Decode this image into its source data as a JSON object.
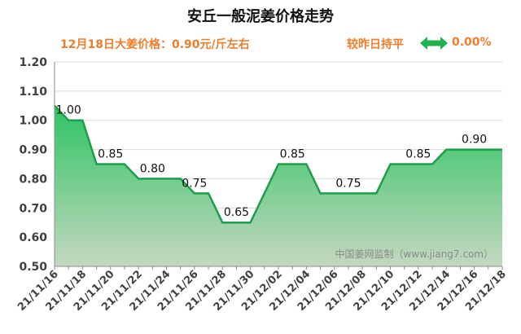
{
  "page_title": "安丘一般泥姜价格走势",
  "price_note": "12月18日大姜价格：0.90元/斤左右",
  "trend_label": "较昨日持平",
  "trend_change": "0.00%",
  "trend_icon": "double-arrow-icon",
  "watermark": "中国姜网监制（www.jiang7.com）",
  "colors": {
    "accent": "#ef7d2a",
    "line": "#1e9e4a",
    "arrow": "#1eb34e"
  },
  "chart_data": {
    "type": "area",
    "title": "安丘一般泥姜价格走势",
    "ylim": [
      0.5,
      1.2
    ],
    "yticks": [
      "0.50",
      "0.60",
      "0.70",
      "0.80",
      "0.90",
      "1.00",
      "1.10",
      "1.20"
    ],
    "x_tick_labels": [
      "21/11/16",
      "21/11/18",
      "21/11/20",
      "21/11/22",
      "21/11/24",
      "21/11/26",
      "21/11/28",
      "21/11/30",
      "21/12/02",
      "21/12/04",
      "21/12/06",
      "21/12/08",
      "21/12/10",
      "21/12/12",
      "21/12/14",
      "21/12/16",
      "21/12/18"
    ],
    "x": [
      "21/11/16",
      "21/11/17",
      "21/11/18",
      "21/11/19",
      "21/11/20",
      "21/11/21",
      "21/11/22",
      "21/11/23",
      "21/11/24",
      "21/11/25",
      "21/11/26",
      "21/11/27",
      "21/11/28",
      "21/11/29",
      "21/11/30",
      "21/12/01",
      "21/12/02",
      "21/12/03",
      "21/12/04",
      "21/12/05",
      "21/12/06",
      "21/12/07",
      "21/12/08",
      "21/12/09",
      "21/12/10",
      "21/12/11",
      "21/12/12",
      "21/12/13",
      "21/12/14",
      "21/12/15",
      "21/12/16",
      "21/12/17",
      "21/12/18"
    ],
    "values": [
      1.05,
      1.0,
      1.0,
      0.85,
      0.85,
      0.85,
      0.8,
      0.8,
      0.8,
      0.8,
      0.75,
      0.75,
      0.65,
      0.65,
      0.65,
      0.75,
      0.85,
      0.85,
      0.85,
      0.75,
      0.75,
      0.75,
      0.75,
      0.75,
      0.85,
      0.85,
      0.85,
      0.85,
      0.9,
      0.9,
      0.9,
      0.9,
      0.9
    ],
    "data_labels": [
      {
        "x": "21/11/17",
        "text": "1.00"
      },
      {
        "x": "21/11/20",
        "text": "0.85"
      },
      {
        "x": "21/11/23",
        "text": "0.80"
      },
      {
        "x": "21/11/26",
        "text": "0.75"
      },
      {
        "x": "21/11/29",
        "text": "0.65"
      },
      {
        "x": "21/12/03",
        "text": "0.85"
      },
      {
        "x": "21/12/07",
        "text": "0.75"
      },
      {
        "x": "21/12/12",
        "text": "0.85"
      },
      {
        "x": "21/12/16",
        "text": "0.90"
      }
    ],
    "grid": true
  }
}
